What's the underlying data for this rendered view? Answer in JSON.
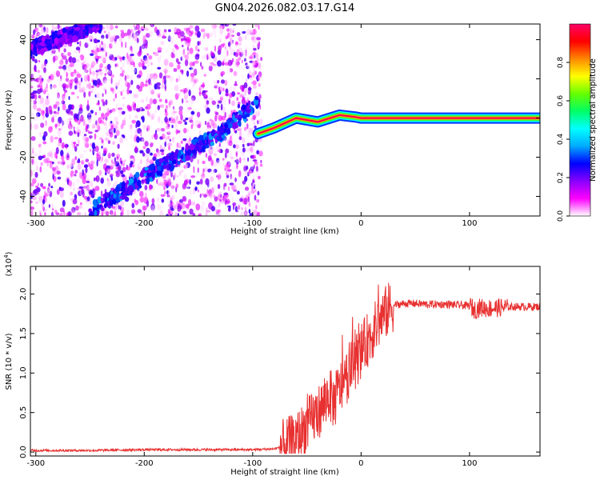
{
  "chart_data": [
    {
      "type": "heatmap",
      "title": "GN04.2026.082.03.17.G14",
      "xlabel": "Height of straight line (km)",
      "ylabel": "Frequency (Hz)",
      "xlim": [
        -305,
        165
      ],
      "ylim": [
        -50,
        48
      ],
      "xticks": [
        -300,
        -200,
        -100,
        0,
        100
      ],
      "yticks": [
        -40,
        -20,
        0,
        20,
        40
      ],
      "colorbar": {
        "label": "Normalized spectral amplitude",
        "range": [
          0,
          1
        ],
        "ticks": [
          0.0,
          0.2,
          0.4,
          0.6,
          0.8
        ],
        "colors": [
          "#ffffff",
          "#ff00ff",
          "#8800ff",
          "#0000ff",
          "#00aaff",
          "#00ffff",
          "#00ff66",
          "#66ff00",
          "#ffff00",
          "#ff8800",
          "#ff0000",
          "#ff0066"
        ]
      },
      "features": [
        {
          "name": "upper-band",
          "points": [
            [
              -305,
              35
            ],
            [
              -270,
              42
            ],
            [
              -250,
              47
            ],
            [
              -240,
              48
            ]
          ],
          "amplitude": 0.22
        },
        {
          "name": "lower-band",
          "points": [
            [
              -250,
              -48
            ],
            [
              -200,
              -30
            ],
            [
              -160,
              -17
            ],
            [
              -130,
              -8
            ],
            [
              -100,
              6
            ],
            [
              -95,
              9
            ]
          ],
          "amplitude": 0.28
        },
        {
          "name": "carrier-trace",
          "points": [
            [
              -95,
              -8
            ],
            [
              -80,
              -5
            ],
            [
              -60,
              0
            ],
            [
              -40,
              -2
            ],
            [
              -20,
              1.5
            ],
            [
              -5,
              0.5
            ],
            [
              0,
              0
            ],
            [
              165,
              0
            ]
          ],
          "amplitude": 0.95
        }
      ]
    },
    {
      "type": "line",
      "xlabel": "Height of straight line (km)",
      "ylabel": "SNR (10 * v/v)",
      "yscale_label": "(x10",
      "yscale_exp": "4",
      "yscale_close": ")",
      "xlim": [
        -305,
        165
      ],
      "ylim": [
        -0.05,
        2.35
      ],
      "xticks": [
        -300,
        -200,
        -100,
        0,
        100
      ],
      "yticks": [
        0.0,
        0.5,
        1.0,
        1.5,
        2.0
      ],
      "color": "#e83030",
      "series": [
        {
          "x": [
            -305,
            -250,
            -200,
            -150,
            -100,
            -80,
            -72,
            -65,
            -58,
            -52,
            -46,
            -40,
            -34,
            -30,
            -25,
            -20,
            -15,
            -10,
            -5,
            0,
            5,
            10,
            15,
            20,
            25,
            30,
            40,
            50,
            60,
            70,
            80,
            90,
            100,
            105,
            110,
            115,
            120,
            130,
            140,
            150,
            165
          ],
          "y": [
            0.02,
            0.02,
            0.03,
            0.03,
            0.03,
            0.04,
            0.07,
            0.12,
            0.2,
            0.3,
            0.4,
            0.5,
            0.6,
            0.75,
            0.62,
            0.8,
            0.9,
            1.05,
            1.15,
            1.28,
            1.4,
            1.5,
            1.62,
            1.72,
            1.8,
            1.86,
            1.88,
            1.88,
            1.87,
            1.87,
            1.87,
            1.86,
            1.85,
            1.8,
            1.83,
            1.82,
            1.82,
            1.83,
            1.84,
            1.84,
            1.84
          ]
        }
      ]
    }
  ]
}
